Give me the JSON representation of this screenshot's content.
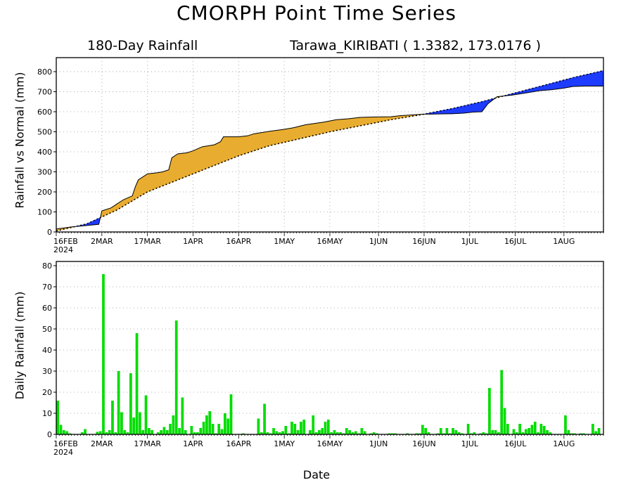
{
  "title": "CMORPH Point Time Series",
  "subtitle_left": "180-Day Rainfall",
  "subtitle_right": "Tarawa_KIRIBATI ( 1.3382, 173.0176 )",
  "xlabel": "Date",
  "colors": {
    "above": "#e8ad30",
    "below": "#1e3cff",
    "bars": "#00dd00",
    "grid": "#999999"
  },
  "chart_data": [
    {
      "type": "area",
      "ylabel": "Rainfall vs Normal (mm)",
      "xlim": [
        0,
        180
      ],
      "ylim": [
        0,
        870
      ],
      "yticks": [
        0,
        100,
        200,
        300,
        400,
        500,
        600,
        700,
        800
      ],
      "xticks": [
        {
          "day": 0,
          "label": "16FEB",
          "sub": "2024"
        },
        {
          "day": 15,
          "label": "2MAR"
        },
        {
          "day": 30,
          "label": "17MAR"
        },
        {
          "day": 45,
          "label": "1APR"
        },
        {
          "day": 60,
          "label": "16APR"
        },
        {
          "day": 75,
          "label": "1MAY"
        },
        {
          "day": 90,
          "label": "16MAY"
        },
        {
          "day": 106,
          "label": "1JUN"
        },
        {
          "day": 121,
          "label": "16JUN"
        },
        {
          "day": 136,
          "label": "1JUL"
        },
        {
          "day": 151,
          "label": "16JUL"
        },
        {
          "day": 167,
          "label": "1AUG"
        }
      ],
      "series": [
        {
          "role": "observed",
          "points": [
            [
              0,
              15
            ],
            [
              5,
              25
            ],
            [
              14,
              38
            ],
            [
              15,
              105
            ],
            [
              18,
              120
            ],
            [
              20,
              140
            ],
            [
              22,
              160
            ],
            [
              25,
              180
            ],
            [
              26,
              225
            ],
            [
              27,
              260
            ],
            [
              30,
              290
            ],
            [
              33,
              295
            ],
            [
              35,
              300
            ],
            [
              37,
              310
            ],
            [
              38,
              370
            ],
            [
              40,
              390
            ],
            [
              43,
              395
            ],
            [
              45,
              405
            ],
            [
              48,
              425
            ],
            [
              52,
              435
            ],
            [
              54,
              450
            ],
            [
              55,
              475
            ],
            [
              60,
              475
            ],
            [
              63,
              480
            ],
            [
              65,
              490
            ],
            [
              70,
              502
            ],
            [
              75,
              512
            ],
            [
              78,
              520
            ],
            [
              82,
              535
            ],
            [
              88,
              548
            ],
            [
              92,
              560
            ],
            [
              96,
              565
            ],
            [
              100,
              572
            ],
            [
              105,
              574
            ],
            [
              110,
              575
            ],
            [
              113,
              580
            ],
            [
              118,
              585
            ],
            [
              121,
              588
            ],
            [
              123,
              588
            ],
            [
              126,
              589
            ],
            [
              130,
              590
            ],
            [
              134,
              593
            ],
            [
              137,
              598
            ],
            [
              140,
              600
            ],
            [
              142,
              640
            ],
            [
              145,
              675
            ],
            [
              150,
              683
            ],
            [
              155,
              695
            ],
            [
              159,
              705
            ],
            [
              163,
              710
            ],
            [
              167,
              718
            ],
            [
              170,
              726
            ],
            [
              174,
              728
            ],
            [
              178,
              728
            ],
            [
              180,
              728
            ]
          ]
        },
        {
          "role": "normal",
          "points": [
            [
              0,
              5
            ],
            [
              10,
              40
            ],
            [
              20,
              110
            ],
            [
              30,
              200
            ],
            [
              40,
              260
            ],
            [
              50,
              320
            ],
            [
              60,
              380
            ],
            [
              70,
              430
            ],
            [
              80,
              465
            ],
            [
              90,
              500
            ],
            [
              100,
              530
            ],
            [
              110,
              560
            ],
            [
              120,
              585
            ],
            [
              130,
              615
            ],
            [
              140,
              650
            ],
            [
              150,
              690
            ],
            [
              160,
              730
            ],
            [
              170,
              770
            ],
            [
              180,
              805
            ]
          ]
        }
      ]
    },
    {
      "type": "bar",
      "ylabel": "Daily Rainfall (mm)",
      "xlim": [
        0,
        180
      ],
      "ylim": [
        0,
        82
      ],
      "yticks": [
        0,
        10,
        20,
        30,
        40,
        50,
        60,
        70,
        80
      ],
      "values": [
        16,
        4.5,
        2,
        1.5,
        0.5,
        0,
        0,
        0,
        1,
        2.5,
        0,
        0,
        0,
        1.2,
        1.5,
        76,
        1,
        2,
        16,
        1,
        30,
        10.5,
        2,
        1,
        29,
        8,
        48,
        10.5,
        2,
        18.5,
        3,
        2,
        0,
        1,
        2,
        3.5,
        2,
        5,
        9,
        54,
        3,
        17.5,
        2,
        0,
        4,
        1,
        1,
        3,
        6,
        9,
        11,
        5,
        0.5,
        5,
        2.5,
        10,
        7.5,
        19,
        0,
        0,
        0,
        0.5,
        0,
        0,
        0,
        0,
        7.5,
        1,
        14.5,
        1,
        0.5,
        3,
        1.5,
        1,
        1.5,
        4,
        0.5,
        6,
        5,
        2,
        6,
        7,
        0,
        2,
        9,
        1,
        2,
        3,
        6,
        7,
        1,
        2,
        1,
        1,
        0.5,
        3,
        2,
        1,
        1.5,
        0.5,
        3,
        1.5,
        0,
        0.5,
        1,
        0.5,
        0,
        0,
        0,
        0.5,
        0.5,
        0.5,
        0,
        0,
        0,
        0.5,
        0,
        0,
        0.5,
        0.5,
        4.5,
        3,
        1,
        0,
        0,
        0.5,
        3,
        0.5,
        3,
        0.5,
        3,
        2,
        1,
        0.5,
        0,
        5,
        0.5,
        1,
        0,
        0.5,
        1,
        0.5,
        22,
        2,
        2,
        1,
        30.5,
        12.5,
        5,
        0,
        2.5,
        1,
        5,
        1,
        2.5,
        3,
        4.5,
        6,
        1,
        5,
        4,
        2,
        1,
        0,
        0,
        0,
        0,
        9,
        2,
        0.5,
        0.5,
        0,
        0.5,
        0.5,
        0,
        0,
        5,
        1.5,
        3,
        0,
        0,
        0,
        0,
        0,
        0,
        0,
        0
      ]
    }
  ]
}
